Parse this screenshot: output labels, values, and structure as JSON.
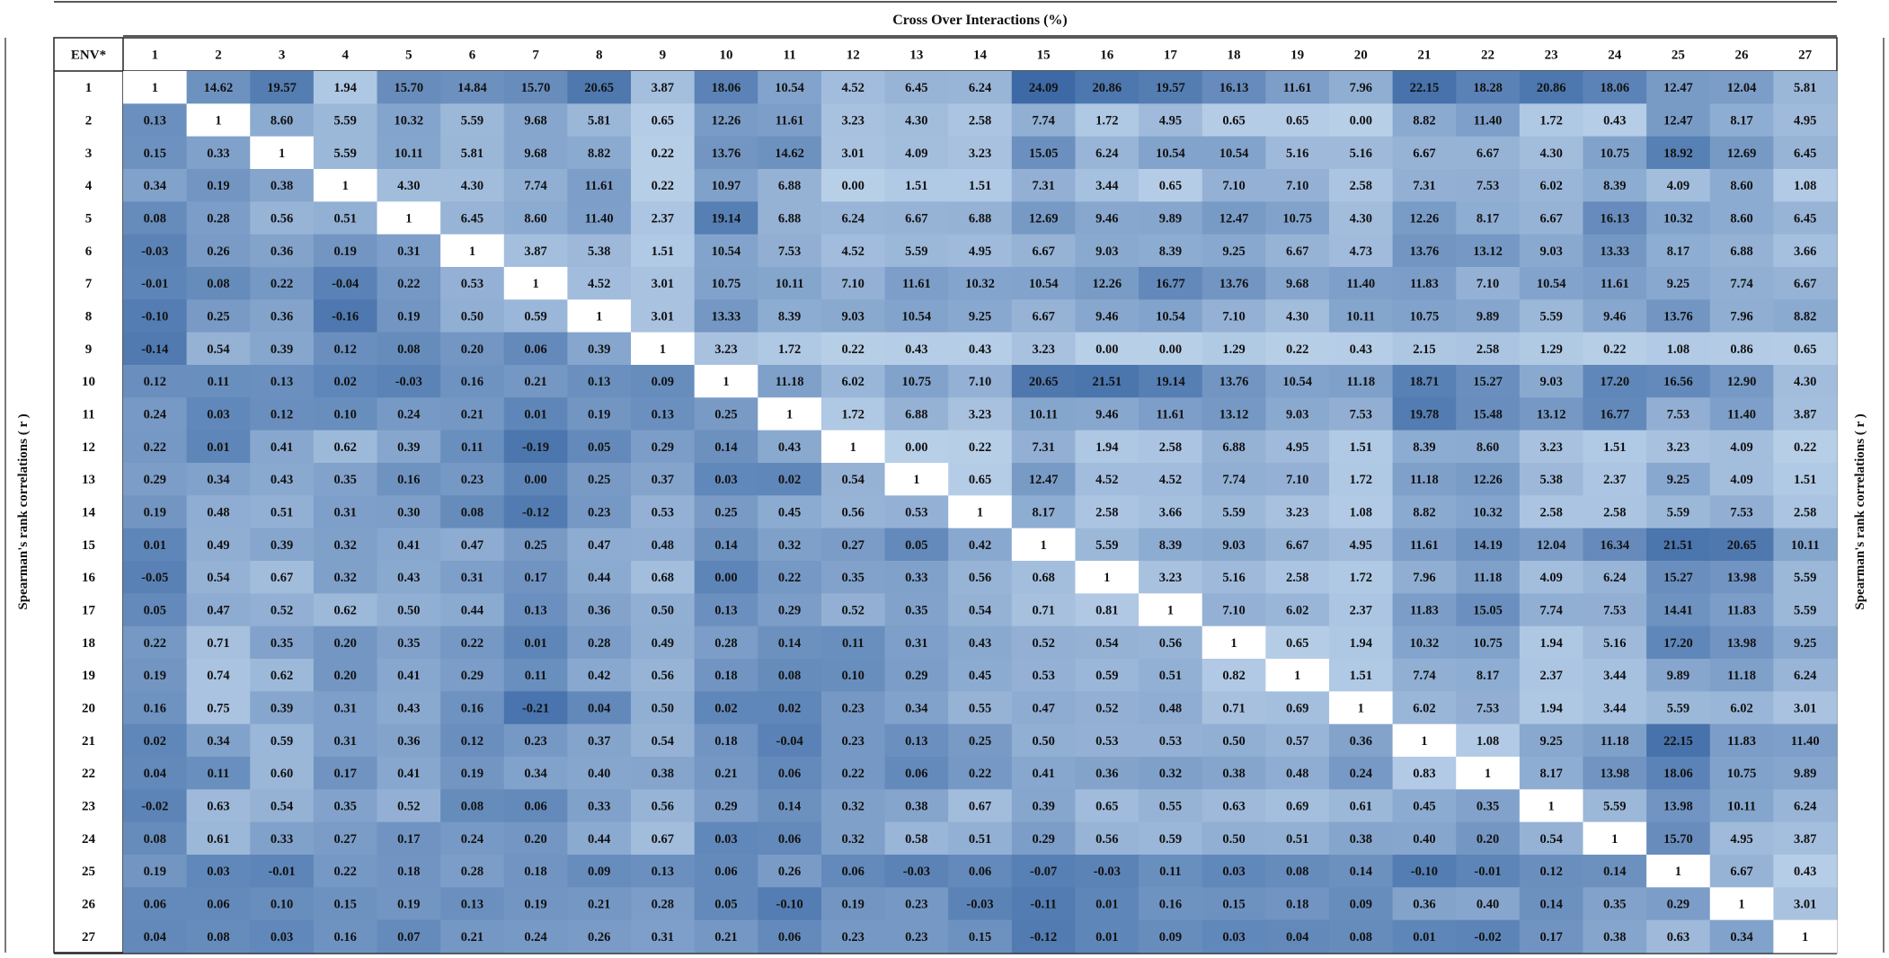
{
  "chart_data": {
    "type": "heatmap",
    "title": "Cross Over Interactions (%)",
    "corner_label": "ENV*",
    "left_label": "Spearman's rank correlations ( r )",
    "right_label": "Spearman's rank correlations ( r )",
    "upper_triangle": "Cross Over Interactions (%)",
    "lower_triangle": "Spearman's rank correlations ( r )",
    "colors": {
      "low": "#b8cfe8",
      "high": "#3d6aa6",
      "diagonal": "#ffffff",
      "header_bg": "#ffffff"
    },
    "labels": [
      "1",
      "2",
      "3",
      "4",
      "5",
      "6",
      "7",
      "8",
      "9",
      "10",
      "11",
      "12",
      "13",
      "14",
      "15",
      "16",
      "17",
      "18",
      "19",
      "20",
      "21",
      "22",
      "23",
      "24",
      "25",
      "26",
      "27"
    ],
    "matrix": [
      [
        "1",
        "14.62",
        "19.57",
        "1.94",
        "15.70",
        "14.84",
        "15.70",
        "20.65",
        "3.87",
        "18.06",
        "10.54",
        "4.52",
        "6.45",
        "6.24",
        "24.09",
        "20.86",
        "19.57",
        "16.13",
        "11.61",
        "7.96",
        "22.15",
        "18.28",
        "20.86",
        "18.06",
        "12.47",
        "12.04",
        "5.81"
      ],
      [
        "0.13",
        "1",
        "8.60",
        "5.59",
        "10.32",
        "5.59",
        "9.68",
        "5.81",
        "0.65",
        "12.26",
        "11.61",
        "3.23",
        "4.30",
        "2.58",
        "7.74",
        "1.72",
        "4.95",
        "0.65",
        "0.65",
        "0.00",
        "8.82",
        "11.40",
        "1.72",
        "0.43",
        "12.47",
        "8.17",
        "4.95"
      ],
      [
        "0.15",
        "0.33",
        "1",
        "5.59",
        "10.11",
        "5.81",
        "9.68",
        "8.82",
        "0.22",
        "13.76",
        "14.62",
        "3.01",
        "4.09",
        "3.23",
        "15.05",
        "6.24",
        "10.54",
        "10.54",
        "5.16",
        "5.16",
        "6.67",
        "6.67",
        "4.30",
        "10.75",
        "18.92",
        "12.69",
        "6.45"
      ],
      [
        "0.34",
        "0.19",
        "0.38",
        "1",
        "4.30",
        "4.30",
        "7.74",
        "11.61",
        "0.22",
        "10.97",
        "6.88",
        "0.00",
        "1.51",
        "1.51",
        "7.31",
        "3.44",
        "0.65",
        "7.10",
        "7.10",
        "2.58",
        "7.31",
        "7.53",
        "6.02",
        "8.39",
        "4.09",
        "8.60",
        "1.08"
      ],
      [
        "0.08",
        "0.28",
        "0.56",
        "0.51",
        "1",
        "6.45",
        "8.60",
        "11.40",
        "2.37",
        "19.14",
        "6.88",
        "6.24",
        "6.67",
        "6.88",
        "12.69",
        "9.46",
        "9.89",
        "12.47",
        "10.75",
        "4.30",
        "12.26",
        "8.17",
        "6.67",
        "16.13",
        "10.32",
        "8.60",
        "6.45"
      ],
      [
        "-0.03",
        "0.26",
        "0.36",
        "0.19",
        "0.31",
        "1",
        "3.87",
        "5.38",
        "1.51",
        "10.54",
        "7.53",
        "4.52",
        "5.59",
        "4.95",
        "6.67",
        "9.03",
        "8.39",
        "9.25",
        "6.67",
        "4.73",
        "13.76",
        "13.12",
        "9.03",
        "13.33",
        "8.17",
        "6.88",
        "3.66"
      ],
      [
        "-0.01",
        "0.08",
        "0.22",
        "-0.04",
        "0.22",
        "0.53",
        "1",
        "4.52",
        "3.01",
        "10.75",
        "10.11",
        "7.10",
        "11.61",
        "10.32",
        "10.54",
        "12.26",
        "16.77",
        "13.76",
        "9.68",
        "11.40",
        "11.83",
        "7.10",
        "10.54",
        "11.61",
        "9.25",
        "7.74",
        "6.67"
      ],
      [
        "-0.10",
        "0.25",
        "0.36",
        "-0.16",
        "0.19",
        "0.50",
        "0.59",
        "1",
        "3.01",
        "13.33",
        "8.39",
        "9.03",
        "10.54",
        "9.25",
        "6.67",
        "9.46",
        "10.54",
        "7.10",
        "4.30",
        "10.11",
        "10.75",
        "9.89",
        "5.59",
        "9.46",
        "13.76",
        "7.96",
        "8.82"
      ],
      [
        "-0.14",
        "0.54",
        "0.39",
        "0.12",
        "0.08",
        "0.20",
        "0.06",
        "0.39",
        "1",
        "3.23",
        "1.72",
        "0.22",
        "0.43",
        "0.43",
        "3.23",
        "0.00",
        "0.00",
        "1.29",
        "0.22",
        "0.43",
        "2.15",
        "2.58",
        "1.29",
        "0.22",
        "1.08",
        "0.86",
        "0.65"
      ],
      [
        "0.12",
        "0.11",
        "0.13",
        "0.02",
        "-0.03",
        "0.16",
        "0.21",
        "0.13",
        "0.09",
        "1",
        "11.18",
        "6.02",
        "10.75",
        "7.10",
        "20.65",
        "21.51",
        "19.14",
        "13.76",
        "10.54",
        "11.18",
        "18.71",
        "15.27",
        "9.03",
        "17.20",
        "16.56",
        "12.90",
        "4.30"
      ],
      [
        "0.24",
        "0.03",
        "0.12",
        "0.10",
        "0.24",
        "0.21",
        "0.01",
        "0.19",
        "0.13",
        "0.25",
        "1",
        "1.72",
        "6.88",
        "3.23",
        "10.11",
        "9.46",
        "11.61",
        "13.12",
        "9.03",
        "7.53",
        "19.78",
        "15.48",
        "13.12",
        "16.77",
        "7.53",
        "11.40",
        "3.87"
      ],
      [
        "0.22",
        "0.01",
        "0.41",
        "0.62",
        "0.39",
        "0.11",
        "-0.19",
        "0.05",
        "0.29",
        "0.14",
        "0.43",
        "1",
        "0.00",
        "0.22",
        "7.31",
        "1.94",
        "2.58",
        "6.88",
        "4.95",
        "1.51",
        "8.39",
        "8.60",
        "3.23",
        "1.51",
        "3.23",
        "4.09",
        "0.22"
      ],
      [
        "0.29",
        "0.34",
        "0.43",
        "0.35",
        "0.16",
        "0.23",
        "0.00",
        "0.25",
        "0.37",
        "0.03",
        "0.02",
        "0.54",
        "1",
        "0.65",
        "12.47",
        "4.52",
        "4.52",
        "7.74",
        "7.10",
        "1.72",
        "11.18",
        "12.26",
        "5.38",
        "2.37",
        "9.25",
        "4.09",
        "1.51"
      ],
      [
        "0.19",
        "0.48",
        "0.51",
        "0.31",
        "0.30",
        "0.08",
        "-0.12",
        "0.23",
        "0.53",
        "0.25",
        "0.45",
        "0.56",
        "0.53",
        "1",
        "8.17",
        "2.58",
        "3.66",
        "5.59",
        "3.23",
        "1.08",
        "8.82",
        "10.32",
        "2.58",
        "2.58",
        "5.59",
        "7.53",
        "2.58"
      ],
      [
        "0.01",
        "0.49",
        "0.39",
        "0.32",
        "0.41",
        "0.47",
        "0.25",
        "0.47",
        "0.48",
        "0.14",
        "0.32",
        "0.27",
        "0.05",
        "0.42",
        "1",
        "5.59",
        "8.39",
        "9.03",
        "6.67",
        "4.95",
        "11.61",
        "14.19",
        "12.04",
        "16.34",
        "21.51",
        "20.65",
        "10.11"
      ],
      [
        "-0.05",
        "0.54",
        "0.67",
        "0.32",
        "0.43",
        "0.31",
        "0.17",
        "0.44",
        "0.68",
        "0.00",
        "0.22",
        "0.35",
        "0.33",
        "0.56",
        "0.68",
        "1",
        "3.23",
        "5.16",
        "2.58",
        "1.72",
        "7.96",
        "11.18",
        "4.09",
        "6.24",
        "15.27",
        "13.98",
        "5.59"
      ],
      [
        "0.05",
        "0.47",
        "0.52",
        "0.62",
        "0.50",
        "0.44",
        "0.13",
        "0.36",
        "0.50",
        "0.13",
        "0.29",
        "0.52",
        "0.35",
        "0.54",
        "0.71",
        "0.81",
        "1",
        "7.10",
        "6.02",
        "2.37",
        "11.83",
        "15.05",
        "7.74",
        "7.53",
        "14.41",
        "11.83",
        "5.59"
      ],
      [
        "0.22",
        "0.71",
        "0.35",
        "0.20",
        "0.35",
        "0.22",
        "0.01",
        "0.28",
        "0.49",
        "0.28",
        "0.14",
        "0.11",
        "0.31",
        "0.43",
        "0.52",
        "0.54",
        "0.56",
        "1",
        "0.65",
        "1.94",
        "10.32",
        "10.75",
        "1.94",
        "5.16",
        "17.20",
        "13.98",
        "9.25"
      ],
      [
        "0.19",
        "0.74",
        "0.62",
        "0.20",
        "0.41",
        "0.29",
        "0.11",
        "0.42",
        "0.56",
        "0.18",
        "0.08",
        "0.10",
        "0.29",
        "0.45",
        "0.53",
        "0.59",
        "0.51",
        "0.82",
        "1",
        "1.51",
        "7.74",
        "8.17",
        "2.37",
        "3.44",
        "9.89",
        "11.18",
        "6.24"
      ],
      [
        "0.16",
        "0.75",
        "0.39",
        "0.31",
        "0.43",
        "0.16",
        "-0.21",
        "0.04",
        "0.50",
        "0.02",
        "0.02",
        "0.23",
        "0.34",
        "0.55",
        "0.47",
        "0.52",
        "0.48",
        "0.71",
        "0.69",
        "1",
        "6.02",
        "7.53",
        "1.94",
        "3.44",
        "5.59",
        "6.02",
        "3.01"
      ],
      [
        "0.02",
        "0.34",
        "0.59",
        "0.31",
        "0.36",
        "0.12",
        "0.23",
        "0.37",
        "0.54",
        "0.18",
        "-0.04",
        "0.23",
        "0.13",
        "0.25",
        "0.50",
        "0.53",
        "0.53",
        "0.50",
        "0.57",
        "0.36",
        "1",
        "1.08",
        "9.25",
        "11.18",
        "22.15",
        "11.83",
        "11.40"
      ],
      [
        "0.04",
        "0.11",
        "0.60",
        "0.17",
        "0.41",
        "0.19",
        "0.34",
        "0.40",
        "0.38",
        "0.21",
        "0.06",
        "0.22",
        "0.06",
        "0.22",
        "0.41",
        "0.36",
        "0.32",
        "0.38",
        "0.48",
        "0.24",
        "0.83",
        "1",
        "8.17",
        "13.98",
        "18.06",
        "10.75",
        "9.89"
      ],
      [
        "-0.02",
        "0.63",
        "0.54",
        "0.35",
        "0.52",
        "0.08",
        "0.06",
        "0.33",
        "0.56",
        "0.29",
        "0.14",
        "0.32",
        "0.38",
        "0.67",
        "0.39",
        "0.65",
        "0.55",
        "0.63",
        "0.69",
        "0.61",
        "0.45",
        "0.35",
        "1",
        "5.59",
        "13.98",
        "10.11",
        "6.24"
      ],
      [
        "0.08",
        "0.61",
        "0.33",
        "0.27",
        "0.17",
        "0.24",
        "0.20",
        "0.44",
        "0.67",
        "0.03",
        "0.06",
        "0.32",
        "0.58",
        "0.51",
        "0.29",
        "0.56",
        "0.59",
        "0.50",
        "0.51",
        "0.38",
        "0.40",
        "0.20",
        "0.54",
        "1",
        "15.70",
        "4.95",
        "3.87"
      ],
      [
        "0.19",
        "0.03",
        "-0.01",
        "0.22",
        "0.18",
        "0.28",
        "0.18",
        "0.09",
        "0.13",
        "0.06",
        "0.26",
        "0.06",
        "-0.03",
        "0.06",
        "-0.07",
        "-0.03",
        "0.11",
        "0.03",
        "0.08",
        "0.14",
        "-0.10",
        "-0.01",
        "0.12",
        "0.14",
        "1",
        "6.67",
        "0.43"
      ],
      [
        "0.06",
        "0.06",
        "0.10",
        "0.15",
        "0.19",
        "0.13",
        "0.19",
        "0.21",
        "0.28",
        "0.05",
        "-0.10",
        "0.19",
        "0.23",
        "-0.03",
        "-0.11",
        "0.01",
        "0.16",
        "0.15",
        "0.18",
        "0.09",
        "0.36",
        "0.40",
        "0.14",
        "0.35",
        "0.29",
        "1",
        "3.01"
      ],
      [
        "0.04",
        "0.08",
        "0.03",
        "0.16",
        "0.07",
        "0.21",
        "0.24",
        "0.26",
        "0.31",
        "0.21",
        "0.06",
        "0.23",
        "0.23",
        "0.15",
        "-0.12",
        "0.01",
        "0.09",
        "0.03",
        "0.04",
        "0.08",
        "0.01",
        "-0.02",
        "0.17",
        "0.38",
        "0.63",
        "0.34",
        "1"
      ]
    ]
  }
}
